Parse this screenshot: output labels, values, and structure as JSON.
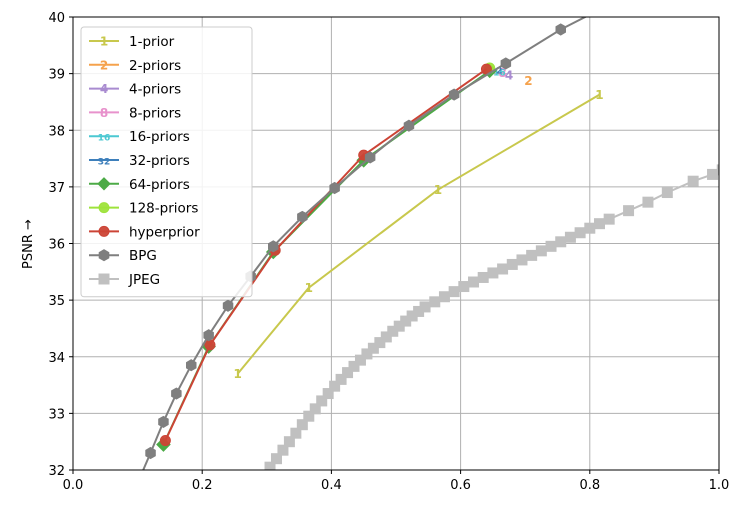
{
  "chart_data": {
    "type": "line",
    "title": "",
    "xlabel": "",
    "ylabel": "PSNR →",
    "xlim": [
      0.0,
      1.0
    ],
    "ylim": [
      32,
      40
    ],
    "xticks": [
      "0.0",
      "0.2",
      "0.4",
      "0.6",
      "0.8",
      "1.0"
    ],
    "yticks": [
      "32",
      "33",
      "34",
      "35",
      "36",
      "37",
      "38",
      "39",
      "40"
    ],
    "grid": true,
    "legend_position": "top-left",
    "series": [
      {
        "name": "1-prior",
        "color": "#c8c84d",
        "marker": "1",
        "line": true,
        "x": [
          0.255,
          0.365,
          0.565,
          0.815
        ],
        "y": [
          33.7,
          35.22,
          36.95,
          38.63
        ]
      },
      {
        "name": "2-priors",
        "color": "#f5a24c",
        "marker": "2",
        "line": false,
        "x": [
          0.705
        ],
        "y": [
          38.88
        ]
      },
      {
        "name": "4-priors",
        "color": "#a98bd0",
        "marker": "4",
        "line": false,
        "x": [
          0.675
        ],
        "y": [
          38.98
        ]
      },
      {
        "name": "8-priors",
        "color": "#e892cc",
        "marker": "8",
        "line": false,
        "x": [
          0.665
        ],
        "y": [
          39.02
        ]
      },
      {
        "name": "16-priors",
        "color": "#4cc8d2",
        "marker": "16",
        "line": false,
        "x": [
          0.66
        ],
        "y": [
          39.05
        ]
      },
      {
        "name": "32-priors",
        "color": "#3d7fbb",
        "marker": "32",
        "line": false,
        "x": [
          0.655
        ],
        "y": [
          39.08
        ]
      },
      {
        "name": "64-priors",
        "color": "#4caa46",
        "marker": "diamond",
        "line": true,
        "x": [
          0.14,
          0.21,
          0.31,
          0.45,
          0.645
        ],
        "y": [
          32.45,
          34.18,
          35.85,
          37.47,
          39.05
        ]
      },
      {
        "name": "128-priors",
        "color": "#9ee33b",
        "marker": "circle",
        "line": false,
        "x": [
          0.645
        ],
        "y": [
          39.1
        ]
      },
      {
        "name": "hyperprior",
        "color": "#cc4436",
        "marker": "circle",
        "line": true,
        "x": [
          0.143,
          0.212,
          0.313,
          0.45,
          0.64
        ],
        "y": [
          32.52,
          34.21,
          35.88,
          37.56,
          39.08
        ]
      },
      {
        "name": "BPG",
        "color": "#7f7f7f",
        "marker": "hexagon",
        "line": true,
        "x": [
          0.09,
          0.12,
          0.14,
          0.16,
          0.183,
          0.21,
          0.24,
          0.275,
          0.31,
          0.355,
          0.405,
          0.46,
          0.52,
          0.59,
          0.67,
          0.755,
          0.81
        ],
        "y": [
          31.5,
          32.3,
          32.85,
          33.35,
          33.85,
          34.38,
          34.9,
          35.42,
          35.95,
          36.47,
          36.98,
          37.52,
          38.08,
          38.63,
          39.18,
          39.78,
          40.1
        ]
      },
      {
        "name": "JPEG",
        "color": "#c0c0c0",
        "marker": "square",
        "line": true,
        "x": [
          0.305,
          0.315,
          0.325,
          0.335,
          0.345,
          0.355,
          0.365,
          0.375,
          0.385,
          0.395,
          0.405,
          0.415,
          0.425,
          0.435,
          0.445,
          0.455,
          0.465,
          0.475,
          0.485,
          0.495,
          0.505,
          0.515,
          0.525,
          0.535,
          0.545,
          0.56,
          0.575,
          0.59,
          0.605,
          0.62,
          0.635,
          0.65,
          0.665,
          0.68,
          0.695,
          0.71,
          0.725,
          0.74,
          0.755,
          0.77,
          0.785,
          0.8,
          0.815,
          0.83,
          0.86,
          0.89,
          0.92,
          0.96,
          0.99,
          1.005
        ],
        "y": [
          32.05,
          32.2,
          32.35,
          32.5,
          32.65,
          32.8,
          32.95,
          33.08,
          33.22,
          33.35,
          33.48,
          33.6,
          33.72,
          33.83,
          33.94,
          34.05,
          34.15,
          34.25,
          34.35,
          34.45,
          34.54,
          34.63,
          34.72,
          34.8,
          34.88,
          34.97,
          35.06,
          35.15,
          35.24,
          35.32,
          35.4,
          35.48,
          35.55,
          35.63,
          35.71,
          35.79,
          35.87,
          35.95,
          36.03,
          36.11,
          36.19,
          36.27,
          36.35,
          36.43,
          36.58,
          36.73,
          36.9,
          37.1,
          37.22,
          37.3
        ]
      }
    ]
  }
}
